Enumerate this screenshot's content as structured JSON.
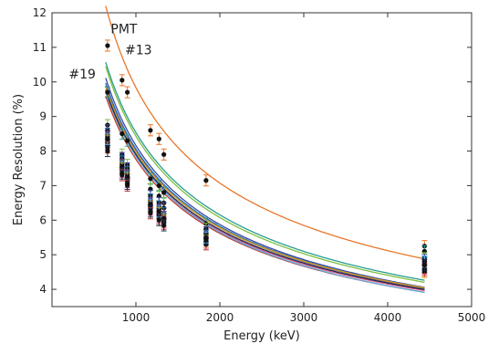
{
  "chart_data": {
    "type": "scatter",
    "title": "",
    "xlabel": "Energy (keV)",
    "ylabel": "Energy Resolution (%)",
    "xlim": [
      0,
      5000
    ],
    "ylim": [
      3.5,
      12
    ],
    "xticks": [
      1000,
      2000,
      3000,
      4000,
      5000
    ],
    "yticks": [
      4,
      5,
      6,
      7,
      8,
      9,
      10,
      11,
      12
    ],
    "grid": false,
    "annotations": [
      {
        "text": "PMT",
        "x": 700,
        "y": 11.4
      },
      {
        "text": "#13",
        "x": 870,
        "y": 10.8
      },
      {
        "text": "#19",
        "x": 200,
        "y": 10.1
      }
    ],
    "energies": [
      662,
      835,
      898,
      1173,
      1275,
      1333,
      1836,
      4439
    ],
    "series": [
      {
        "color": "#e8762a",
        "a": 11.6,
        "b": 0.4,
        "points": [
          [
            662,
            11.05
          ],
          [
            835,
            10.05
          ],
          [
            898,
            9.7
          ],
          [
            1173,
            8.6
          ],
          [
            1275,
            8.35
          ],
          [
            1333,
            7.9
          ],
          [
            1836,
            7.15
          ],
          [
            4439,
            5.25
          ]
        ]
      },
      {
        "color": "#2a9d8f",
        "a": 10.0,
        "b": 0.4,
        "points": [
          [
            662,
            9.7
          ],
          [
            835,
            8.5
          ],
          [
            898,
            8.3
          ],
          [
            1173,
            7.2
          ],
          [
            1275,
            7.0
          ],
          [
            1333,
            6.8
          ],
          [
            1836,
            5.9
          ],
          [
            4439,
            5.1
          ]
        ]
      },
      {
        "color": "#7fbf3f",
        "a": 9.9,
        "b": 0.38,
        "points": [
          [
            662,
            8.75
          ],
          [
            835,
            7.9
          ],
          [
            898,
            7.6
          ],
          [
            1173,
            6.9
          ],
          [
            1275,
            6.7
          ],
          [
            1333,
            6.5
          ],
          [
            1836,
            5.75
          ],
          [
            4439,
            4.9
          ]
        ]
      },
      {
        "color": "#3c4aa6",
        "a": 9.6,
        "b": 0.35,
        "points": [
          [
            662,
            8.6
          ],
          [
            835,
            7.8
          ],
          [
            898,
            7.5
          ],
          [
            1173,
            6.7
          ],
          [
            1275,
            6.5
          ],
          [
            1333,
            6.35
          ],
          [
            1836,
            5.65
          ],
          [
            4439,
            4.85
          ]
        ]
      },
      {
        "color": "#1e6fb5",
        "a": 9.4,
        "b": 0.41,
        "points": [
          [
            662,
            8.5
          ],
          [
            835,
            7.7
          ],
          [
            898,
            7.4
          ],
          [
            1173,
            6.6
          ],
          [
            1275,
            6.4
          ],
          [
            1333,
            6.2
          ],
          [
            1836,
            5.55
          ],
          [
            4439,
            4.75
          ]
        ]
      },
      {
        "color": "#7b4fa0",
        "a": 9.3,
        "b": 0.43,
        "points": [
          [
            662,
            8.4
          ],
          [
            835,
            7.6
          ],
          [
            898,
            7.3
          ],
          [
            1173,
            6.5
          ],
          [
            1275,
            6.3
          ],
          [
            1333,
            6.1
          ],
          [
            1836,
            5.5
          ],
          [
            4439,
            4.65
          ]
        ]
      },
      {
        "color": "#d4a017",
        "a": 9.2,
        "b": 0.49,
        "points": [
          [
            662,
            8.3
          ],
          [
            835,
            7.5
          ],
          [
            898,
            7.2
          ],
          [
            1173,
            6.4
          ],
          [
            1275,
            6.2
          ],
          [
            1333,
            6.0
          ],
          [
            1836,
            5.4
          ],
          [
            4439,
            4.5
          ]
        ]
      },
      {
        "color": "#e05a8a",
        "a": 9.1,
        "b": 0.45,
        "points": [
          [
            662,
            8.2
          ],
          [
            835,
            7.4
          ],
          [
            898,
            7.1
          ],
          [
            1173,
            6.3
          ],
          [
            1275,
            6.1
          ],
          [
            1333,
            5.95
          ],
          [
            1836,
            5.35
          ],
          [
            4439,
            4.6
          ]
        ]
      },
      {
        "color": "#c0392b",
        "a": 9.0,
        "b": 0.44,
        "points": [
          [
            662,
            8.1
          ],
          [
            835,
            7.3
          ],
          [
            898,
            7.0
          ],
          [
            1173,
            6.2
          ],
          [
            1275,
            6.05
          ],
          [
            1333,
            5.9
          ],
          [
            1836,
            5.3
          ],
          [
            4439,
            4.55
          ]
        ]
      },
      {
        "color": "#5dade2",
        "a": 9.2,
        "b": 0.36,
        "points": [
          [
            662,
            8.35
          ],
          [
            835,
            7.55
          ],
          [
            898,
            7.25
          ],
          [
            1173,
            6.45
          ],
          [
            1275,
            6.25
          ],
          [
            1333,
            6.05
          ],
          [
            1836,
            5.5
          ],
          [
            4439,
            4.8
          ]
        ]
      },
      {
        "color": "#1b2a4a",
        "a": 9.15,
        "b": 0.46,
        "points": [
          [
            662,
            8.0
          ],
          [
            835,
            7.35
          ],
          [
            898,
            7.05
          ],
          [
            1173,
            6.25
          ],
          [
            1275,
            6.0
          ],
          [
            1333,
            5.85
          ],
          [
            1836,
            5.45
          ],
          [
            4439,
            4.7
          ]
        ]
      }
    ]
  }
}
